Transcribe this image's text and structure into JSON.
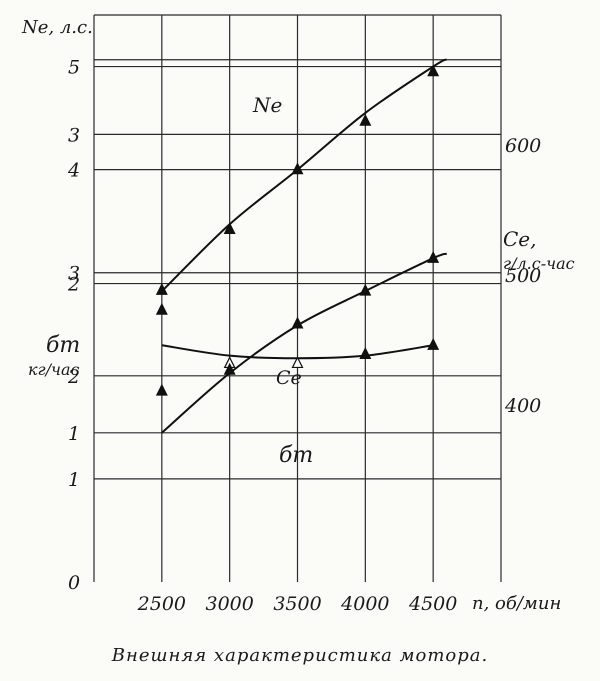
{
  "caption": "Внешняя характеристика мотора.",
  "chart_data": {
    "type": "line",
    "x_axis": {
      "label": "n, об/мин",
      "ticks": [
        "2500",
        "3000",
        "3500",
        "4000",
        "4500"
      ],
      "range": [
        2000,
        5000
      ]
    },
    "left_upper_axis": {
      "label": "Ne, л.с.",
      "ticks": [
        "1",
        "2",
        "3",
        "4",
        "5"
      ],
      "range": [
        0,
        5.5
      ]
    },
    "left_lower_axis": {
      "label_main": "бт",
      "label_unit": "кг/час",
      "zero_label": "0",
      "ticks": [
        "1",
        "2",
        "3"
      ],
      "range": [
        0,
        3.8
      ]
    },
    "right_axis": {
      "label_main": "Ce,",
      "label_unit": "г/л.с-час",
      "ticks": [
        "400",
        "500",
        "600"
      ],
      "range": [
        263.9,
        700
      ]
    },
    "grid": true,
    "series": [
      {
        "name": "Ne",
        "axis": "left_upper",
        "curve_x": [
          2500,
          3000,
          3500,
          4000,
          4500,
          4600
        ],
        "curve_y": [
          2.82,
          3.47,
          4.0,
          4.55,
          5.0,
          5.07
        ],
        "markers": [
          {
            "x": 2500,
            "y": 2.83
          },
          {
            "x": 3000,
            "y": 3.42
          },
          {
            "x": 3500,
            "y": 4.0
          },
          {
            "x": 4000,
            "y": 4.47
          },
          {
            "x": 4500,
            "y": 4.95
          }
        ]
      },
      {
        "name": "Ce",
        "axis": "right",
        "curve_x": [
          2500,
          3000,
          3500,
          4000,
          4500
        ],
        "curve_y": [
          446,
          438,
          436,
          438,
          446
        ],
        "markers": [
          {
            "x": 2500,
            "y": 473,
            "filled": true
          },
          {
            "x": 3000,
            "y": 432,
            "filled": false
          },
          {
            "x": 3500,
            "y": 432,
            "filled": false
          },
          {
            "x": 4000,
            "y": 439,
            "filled": true
          },
          {
            "x": 4500,
            "y": 446,
            "filled": true
          }
        ]
      },
      {
        "name": "бт",
        "axis": "left_lower",
        "curve_x": [
          2500,
          3000,
          3500,
          4000,
          4500,
          4600
        ],
        "curve_y": [
          1.0,
          1.4,
          1.72,
          1.95,
          2.17,
          2.2
        ],
        "markers": [
          {
            "x": 2500,
            "y": 1.28
          },
          {
            "x": 3000,
            "y": 1.42
          },
          {
            "x": 3500,
            "y": 1.73
          },
          {
            "x": 4000,
            "y": 1.95
          },
          {
            "x": 4500,
            "y": 2.17
          }
        ]
      }
    ]
  }
}
